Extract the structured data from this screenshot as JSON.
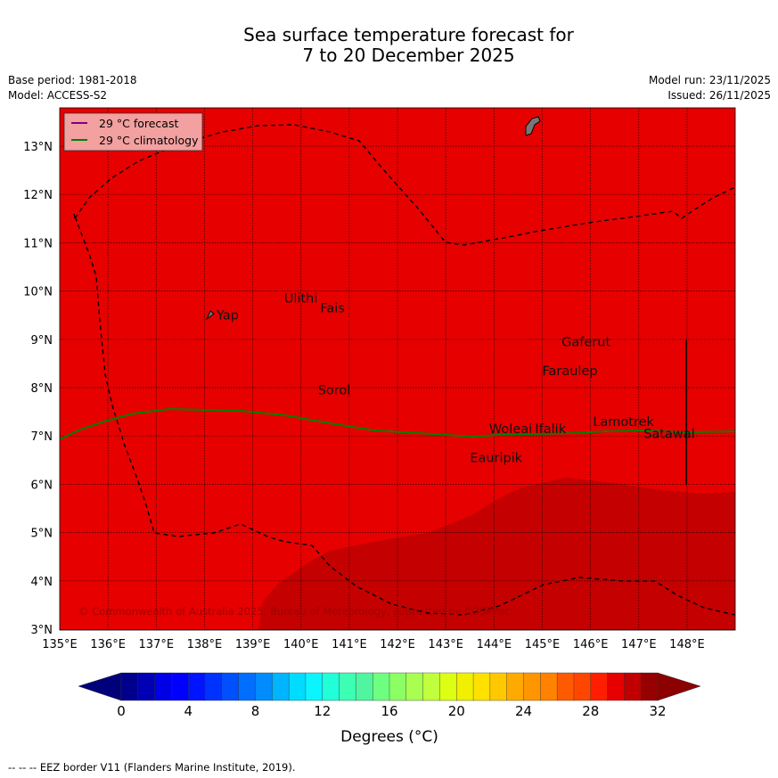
{
  "title": {
    "line1": "Sea surface temperature forecast for",
    "line2": "7 to 20 December 2025"
  },
  "meta": {
    "base_period": "Base period: 1981-2018",
    "model": "Model: ACCESS-S2",
    "model_run": "Model run: 23/11/2025",
    "issued": "Issued: 26/11/2025"
  },
  "legend": {
    "forecast": "29 °C  forecast",
    "climatology": "29 °C  climatology",
    "forecast_color": "#800080",
    "climatology_color": "#008000"
  },
  "axes": {
    "x": [
      "135°E",
      "136°E",
      "137°E",
      "138°E",
      "139°E",
      "140°E",
      "141°E",
      "142°E",
      "143°E",
      "144°E",
      "145°E",
      "146°E",
      "147°E",
      "148°E"
    ],
    "y": [
      "3°N",
      "4°N",
      "5°N",
      "6°N",
      "7°N",
      "8°N",
      "9°N",
      "10°N",
      "11°N",
      "12°N",
      "13°N"
    ]
  },
  "places": [
    {
      "name": "Yap",
      "lon": 138.25,
      "lat": 9.5
    },
    {
      "name": "Ulithi",
      "lon": 139.65,
      "lat": 9.85
    },
    {
      "name": "Fais",
      "lon": 140.4,
      "lat": 9.65
    },
    {
      "name": "Gaferut",
      "lon": 145.4,
      "lat": 8.95
    },
    {
      "name": "Faraulep",
      "lon": 145.0,
      "lat": 8.35
    },
    {
      "name": "Sorol",
      "lon": 140.35,
      "lat": 7.95
    },
    {
      "name": "Lamotrek",
      "lon": 146.05,
      "lat": 7.3
    },
    {
      "name": "Woleai",
      "lon": 143.9,
      "lat": 7.15
    },
    {
      "name": "Ifalik",
      "lon": 144.85,
      "lat": 7.15
    },
    {
      "name": "Satawal",
      "lon": 147.1,
      "lat": 7.05
    },
    {
      "name": "Eauripik",
      "lon": 143.5,
      "lat": 6.55
    }
  ],
  "copyright": "© Commonwealth of Australia 2025, Bureau of Meteorology, supported by COSPPac",
  "colorbar": {
    "label": "Degrees (°C)",
    "ticks": [
      "0",
      "4",
      "8",
      "12",
      "16",
      "20",
      "24",
      "28",
      "32"
    ],
    "under": "#00007a",
    "over": "#8c0000",
    "colors": [
      "#00008c",
      "#0000b4",
      "#0000e6",
      "#0000ff",
      "#0014ff",
      "#0032ff",
      "#0050ff",
      "#006eff",
      "#008cff",
      "#00b4ff",
      "#00dcff",
      "#0af5ff",
      "#20ffd8",
      "#3cffb4",
      "#50f5a0",
      "#6eff80",
      "#8cff64",
      "#a8ff50",
      "#c0ff3c",
      "#dcff14",
      "#f0f000",
      "#ffe100",
      "#ffc800",
      "#ffaa00",
      "#ff9600",
      "#ff8200",
      "#ff5a00",
      "#ff4600",
      "#ff1e00",
      "#e60000",
      "#c00000",
      "#960000"
    ]
  },
  "map_colors": {
    "band_29_30": "#e60000",
    "band_30_31": "#c40000"
  },
  "footer": "--  --  -- EEZ border V11 (Flanders Marine Institute, 2019)."
}
